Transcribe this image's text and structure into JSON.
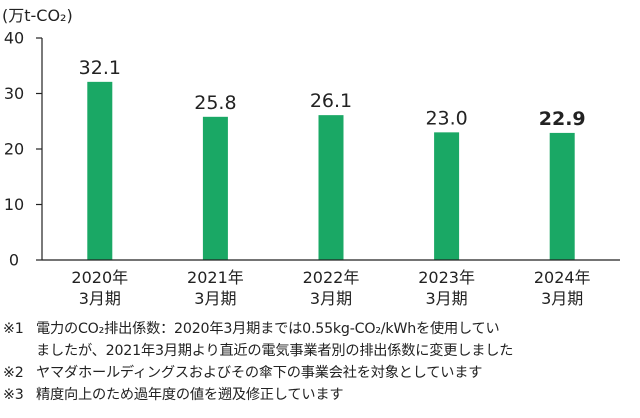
{
  "chart_data": {
    "type": "bar",
    "unit_label": "(万t-CO₂)",
    "categories": [
      [
        "2020年",
        "3月期"
      ],
      [
        "2021年",
        "3月期"
      ],
      [
        "2022年",
        "3月期"
      ],
      [
        "2023年",
        "3月期"
      ],
      [
        "2024年",
        "3月期"
      ]
    ],
    "values": [
      32.1,
      25.8,
      26.1,
      23.0,
      22.9
    ],
    "data_labels": [
      "32.1",
      "25.8",
      "26.1",
      "23.0",
      "22.9"
    ],
    "highlight_index": 4,
    "yticks": [
      0,
      10,
      20,
      30,
      40
    ],
    "ylim": [
      0,
      40
    ],
    "bar_color": "#1aa865",
    "grid": false
  },
  "notes": [
    {
      "mark": "※1",
      "lines": [
        "電力のCO₂排出係数：2020年3月期までは0.55kg-CO₂/kWhを使用してい",
        "ましたが、2021年3月期より直近の電気事業者別の排出係数に変更しました"
      ]
    },
    {
      "mark": "※2",
      "lines": [
        "ヤマダホールディングスおよびその傘下の事業会社を対象としています"
      ]
    },
    {
      "mark": "※3",
      "lines": [
        "精度向上のため過年度の値を遡及修正しています"
      ]
    }
  ]
}
